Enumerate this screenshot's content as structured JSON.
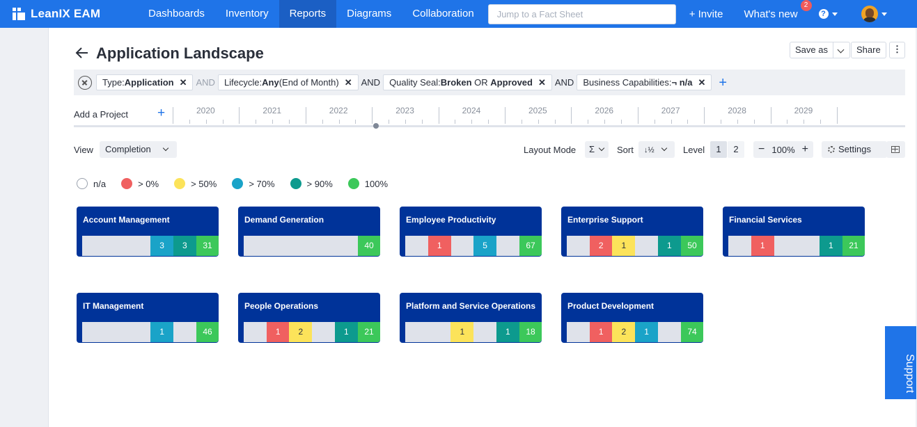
{
  "brand": {
    "name": "LeanIX EAM"
  },
  "nav": {
    "items": [
      "Dashboards",
      "Inventory",
      "Reports",
      "Diagrams",
      "Collaboration"
    ],
    "active": "Reports"
  },
  "search": {
    "placeholder": "Jump to a Fact Sheet"
  },
  "header": {
    "invite": "+ Invite",
    "whats_new": "What's new",
    "whats_new_count": "2",
    "help": "?"
  },
  "page": {
    "title": "Application Landscape",
    "save_as": "Save as",
    "share": "Share",
    "more": "⋮"
  },
  "filters": {
    "chips": [
      {
        "label": "Type: ",
        "value": "Application",
        "suffix": ""
      },
      {
        "label": "Lifecycle: ",
        "value": "Any",
        "suffix": " (End of Month)"
      },
      {
        "label": "Quality Seal: ",
        "value": "Broken",
        "mid": " OR ",
        "value2": "Approved"
      },
      {
        "label": "Business Capabilities: ",
        "value": "¬ n/a",
        "suffix": ""
      }
    ],
    "operators": [
      "AND",
      "AND",
      "AND"
    ]
  },
  "timeline": {
    "add_project": "Add a Project",
    "years": [
      "2020",
      "2021",
      "2022",
      "2023",
      "2024",
      "2025",
      "2026",
      "2027",
      "2028",
      "2029"
    ]
  },
  "toolbar": {
    "view_label": "View",
    "view_value": "Completion",
    "layout_mode_label": "Layout Mode",
    "layout_mode_value": "Σ",
    "sort_label": "Sort",
    "sort_value": "↓½",
    "level_label": "Level",
    "levels": [
      "1",
      "2"
    ],
    "active_level": "1",
    "zoom": "100%",
    "settings": "Settings"
  },
  "legend": [
    {
      "label": "n/a",
      "color": "#ffffff"
    },
    {
      "label": "> 0%",
      "color": "#f06060"
    },
    {
      "label": "> 50%",
      "color": "#fce35a"
    },
    {
      "label": "> 70%",
      "color": "#1aa3c8"
    },
    {
      "label": "> 90%",
      "color": "#0d9a8e"
    },
    {
      "label": "100%",
      "color": "#3cc85a"
    }
  ],
  "cards": [
    {
      "title": "Account Management",
      "segments": [
        "",
        "",
        "",
        "3",
        "3",
        "31"
      ]
    },
    {
      "title": "Demand Generation",
      "segments": [
        "",
        "",
        "",
        "",
        "",
        "40"
      ]
    },
    {
      "title": "Employee Productivity",
      "segments": [
        "",
        "1",
        "",
        "5",
        "",
        "67"
      ]
    },
    {
      "title": "Enterprise Support",
      "segments": [
        "",
        "2",
        "1",
        "",
        "1",
        "50"
      ]
    },
    {
      "title": "Financial Services",
      "segments": [
        "",
        "1",
        "",
        "",
        "1",
        "21"
      ]
    },
    {
      "title": "IT Management",
      "segments": [
        "",
        "",
        "",
        "1",
        "",
        "46"
      ]
    },
    {
      "title": "People Operations",
      "segments": [
        "",
        "1",
        "2",
        "",
        "1",
        "21"
      ]
    },
    {
      "title": "Platform and Service Operations",
      "segments": [
        "",
        "",
        "1",
        "",
        "1",
        "18"
      ]
    },
    {
      "title": "Product Development",
      "segments": [
        "",
        "1",
        "2",
        "1",
        "",
        "74"
      ]
    }
  ],
  "support": {
    "label": "Support"
  }
}
